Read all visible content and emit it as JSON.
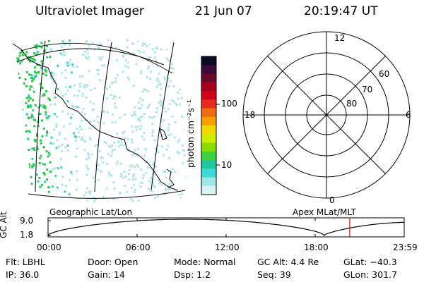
{
  "header": {
    "title": "Ultraviolet Imager",
    "date": "21 Jun 07",
    "time": "20:19:47 UT"
  },
  "colorbar": {
    "label": "photon cm⁻²s⁻¹",
    "ticks": [
      "100",
      "10"
    ],
    "colors": [
      "#0a0a24",
      "#3a0a3a",
      "#6a0a2a",
      "#a8001a",
      "#d0001a",
      "#e82a1a",
      "#f06a10",
      "#f4a000",
      "#f0d800",
      "#d0ec00",
      "#8adc00",
      "#3cd240",
      "#20c8a0",
      "#40d8d8",
      "#a0e8e8",
      "#d8f4f4"
    ]
  },
  "polar": {
    "clock_labels": [
      "12",
      "18",
      "6",
      "0"
    ],
    "lat_labels": [
      "60",
      "70",
      "80"
    ]
  },
  "map": {
    "label": "Geographic Lat/Lon",
    "aurora_color": "#22cc44",
    "glow_color": "#aee6e6"
  },
  "polar_caption": "Apex MLat/MLT",
  "altitude_panel": {
    "ylabel": "GC Alt",
    "y_ticks": [
      "9.0",
      "1.8"
    ],
    "x_ticks": [
      "00:00",
      "06:00",
      "12:00",
      "18:00",
      "23:59"
    ],
    "marker_color": "#dd0000",
    "marker_time": 20.33
  },
  "footer": {
    "flt": "Flt: LBHL",
    "door": "Door: Open",
    "mode": "Mode: Normal",
    "gcalt": "GC Alt: 4.4 Re",
    "glat": "GLat: −40.3",
    "ip": "IP: 36.0",
    "gain": "Gain: 14",
    "dsp": "Dsp:    1.2",
    "seq": "Seq: 39",
    "glon": "GLon: 301.7"
  }
}
